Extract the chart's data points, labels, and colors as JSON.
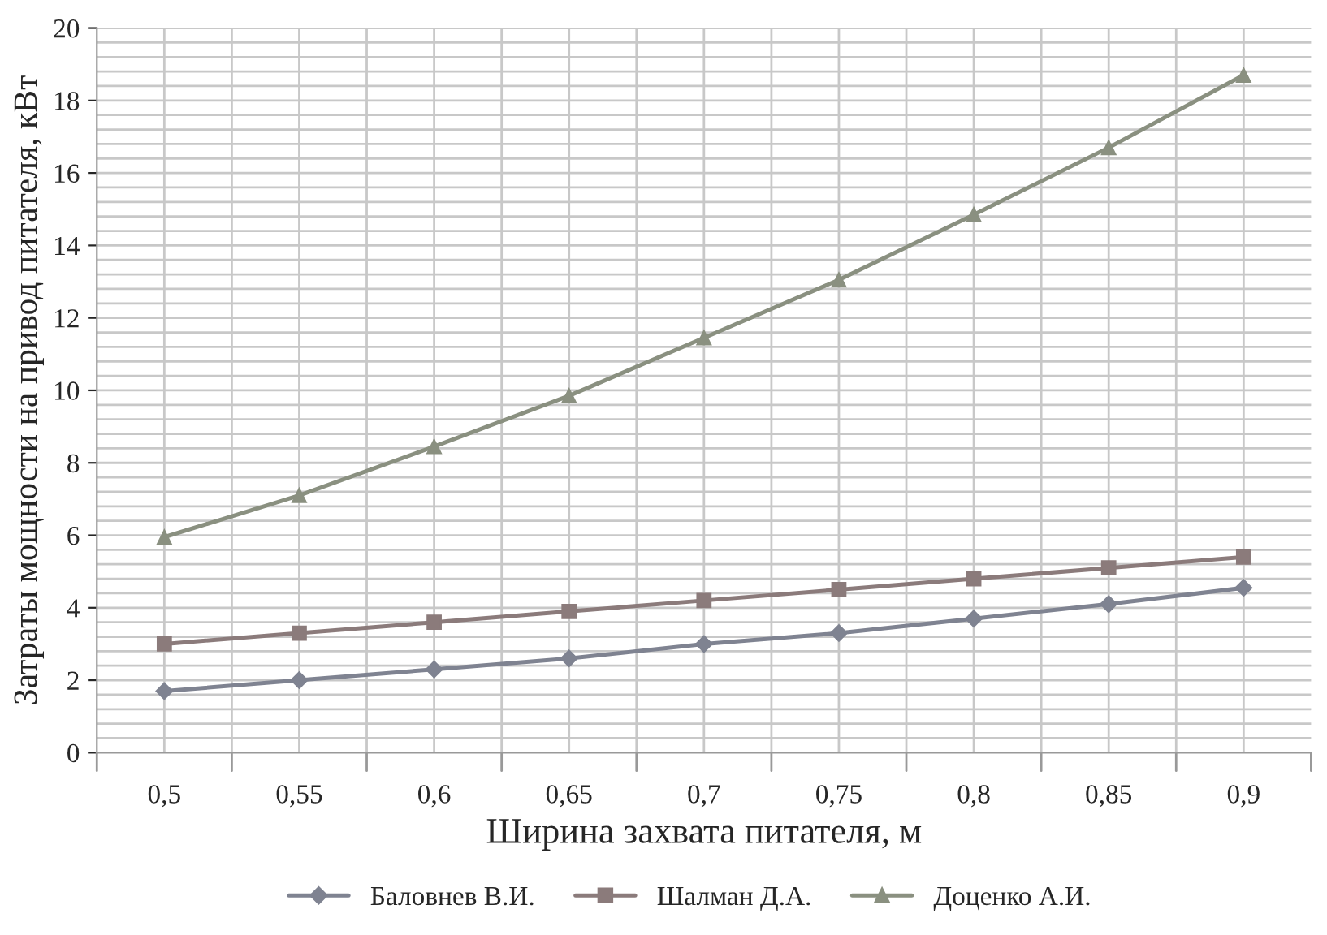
{
  "chart_data": {
    "type": "line",
    "xlabel": "Ширина захвата питателя, м",
    "ylabel": "Затраты мощности на привод питателя, кВт",
    "categories": [
      "0,5",
      "0,55",
      "0,6",
      "0,65",
      "0,7",
      "0,75",
      "0,8",
      "0,85",
      "0,9"
    ],
    "series": [
      {
        "name": "Баловнев В.И.",
        "color": "#7f8391",
        "marker": "diamond",
        "values": [
          1.7,
          2.0,
          2.3,
          2.6,
          3.0,
          3.3,
          3.7,
          4.1,
          4.55
        ]
      },
      {
        "name": "Шалман Д.А.",
        "color": "#8b7b7b",
        "marker": "square",
        "values": [
          3.0,
          3.3,
          3.6,
          3.9,
          4.2,
          4.5,
          4.8,
          5.1,
          5.4
        ]
      },
      {
        "name": "Доценко А.И.",
        "color": "#8a9080",
        "marker": "triangle",
        "values": [
          5.95,
          7.1,
          8.45,
          9.85,
          11.45,
          13.05,
          14.85,
          16.7,
          18.7
        ]
      }
    ],
    "ylim": [
      0,
      20
    ],
    "yticks": [
      0,
      2,
      4,
      6,
      8,
      10,
      12,
      14,
      16,
      18,
      20
    ],
    "grid": true,
    "legend": "bottom",
    "line_style": "solid"
  }
}
